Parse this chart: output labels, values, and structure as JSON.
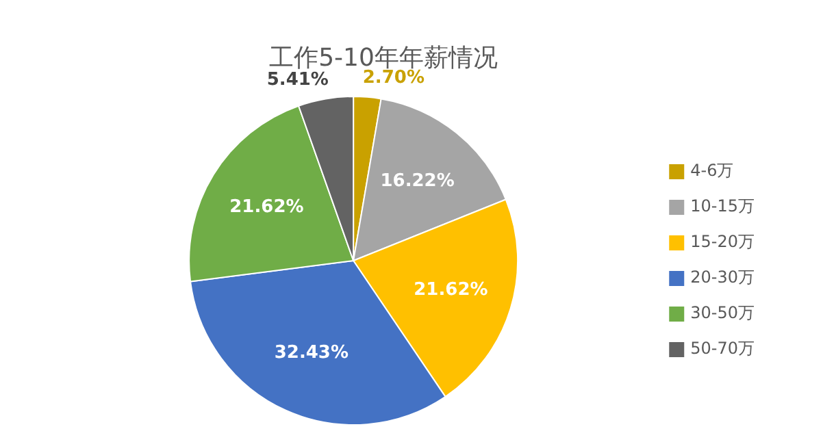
{
  "chart_data": {
    "type": "pie",
    "title": "工作5-10年年薪情况",
    "categories": [
      "4-6万",
      "10-15万",
      "15-20万",
      "20-30万",
      "30-50万",
      "50-70万"
    ],
    "values": [
      2.7,
      16.22,
      21.62,
      32.43,
      21.62,
      5.41
    ],
    "colors": [
      "#c9a100",
      "#a5a5a5",
      "#ffc000",
      "#4472c4",
      "#70ad47",
      "#636363"
    ],
    "value_labels": [
      "2.70%",
      "16.22%",
      "21.62%",
      "32.43%",
      "21.62%",
      "5.41%"
    ],
    "legend": "right"
  }
}
